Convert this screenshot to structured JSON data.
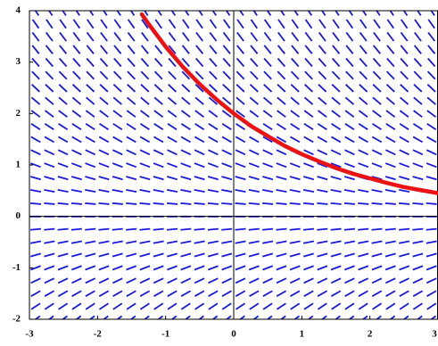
{
  "chart_data": {
    "type": "slope-field",
    "slope_coefficient": -0.5,
    "field_color": "#1a1adf",
    "xlim": [
      -3,
      3
    ],
    "ylim": [
      -2,
      4
    ],
    "xticks": [
      -3,
      -2,
      -1,
      0,
      1,
      2,
      3
    ],
    "yticks": [
      -2,
      -1,
      0,
      1,
      2,
      3,
      4
    ],
    "x": [
      -1.35,
      -1.25,
      -1,
      -0.75,
      -0.5,
      -0.25,
      0,
      0.25,
      0.5,
      0.75,
      1,
      1.25,
      1.5,
      1.75,
      2,
      2.25,
      2.5,
      2.75,
      3
    ],
    "series": [
      {
        "color": "#ee1111",
        "values": [
          3.93,
          3.74,
          3.3,
          2.91,
          2.57,
          2.27,
          2,
          1.76,
          1.56,
          1.37,
          1.21,
          1.07,
          0.94,
          0.83,
          0.74,
          0.65,
          0.57,
          0.51,
          0.45
        ]
      }
    ]
  }
}
